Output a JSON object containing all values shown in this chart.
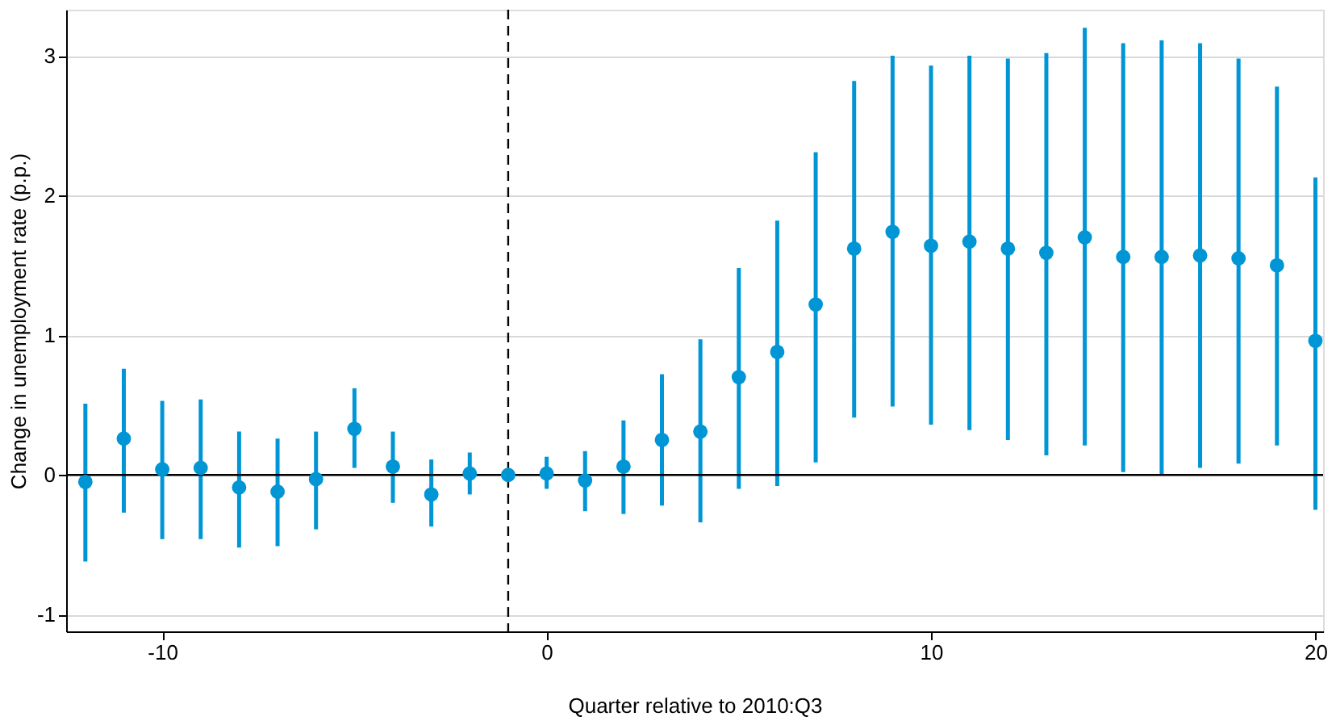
{
  "chart_data": {
    "type": "scatter",
    "xlabel": "Quarter relative to 2010:Q3",
    "ylabel": "Change in unemployment rate (p.p.)",
    "x": [
      -12,
      -11,
      -10,
      -9,
      -8,
      -7,
      -6,
      -5,
      -4,
      -3,
      -2,
      -1,
      0,
      1,
      2,
      3,
      4,
      5,
      6,
      7,
      8,
      9,
      10,
      11,
      12,
      13,
      14,
      15,
      16,
      17,
      18,
      19,
      20
    ],
    "series": [
      {
        "color": "#0096d6",
        "values": [
          -0.05,
          0.26,
          0.04,
          0.05,
          -0.09,
          -0.12,
          -0.03,
          0.33,
          0.06,
          -0.14,
          0.01,
          0,
          0.01,
          -0.04,
          0.06,
          0.25,
          0.31,
          0.7,
          0.88,
          1.22,
          1.62,
          1.74,
          1.64,
          1.67,
          1.62,
          1.59,
          1.7,
          1.56,
          1.56,
          1.57,
          1.55,
          1.5,
          0.96
        ],
        "errors": [
          [
            -0.62,
            0.51
          ],
          [
            -0.27,
            0.76
          ],
          [
            -0.46,
            0.53
          ],
          [
            -0.46,
            0.54
          ],
          [
            -0.52,
            0.31
          ],
          [
            -0.51,
            0.26
          ],
          [
            -0.39,
            0.31
          ],
          [
            0.05,
            0.62
          ],
          [
            -0.2,
            0.31
          ],
          [
            -0.37,
            0.11
          ],
          [
            -0.14,
            0.16
          ],
          null,
          [
            -0.1,
            0.13
          ],
          [
            -0.26,
            0.17
          ],
          [
            -0.28,
            0.39
          ],
          [
            -0.22,
            0.72
          ],
          [
            -0.34,
            0.97
          ],
          [
            -0.1,
            1.48
          ],
          [
            -0.08,
            1.82
          ],
          [
            0.09,
            2.31
          ],
          [
            0.41,
            2.82
          ],
          [
            0.49,
            3.0
          ],
          [
            0.36,
            2.93
          ],
          [
            0.32,
            3.0
          ],
          [
            0.25,
            2.98
          ],
          [
            0.14,
            3.02
          ],
          [
            0.21,
            3.2
          ],
          [
            0.02,
            3.09
          ],
          [
            0,
            3.11
          ],
          [
            0.05,
            3.09
          ],
          [
            0.08,
            2.98
          ],
          [
            0.21,
            2.78
          ],
          [
            -0.25,
            2.13
          ]
        ]
      }
    ],
    "xlim": [
      -12.5,
      20.2
    ],
    "xticks": [
      -10,
      0,
      10,
      20
    ],
    "ylim": [
      -1.12,
      3.33
    ],
    "yticks": [
      -1,
      0,
      1,
      2,
      3
    ],
    "grid": "y",
    "marker": "circle",
    "ref_lines": [
      {
        "axis": "x",
        "value": -1,
        "line_style": "dashed",
        "color": "#000000"
      },
      {
        "axis": "y",
        "value": 0,
        "line_style": "solid",
        "color": "#000000"
      }
    ]
  }
}
